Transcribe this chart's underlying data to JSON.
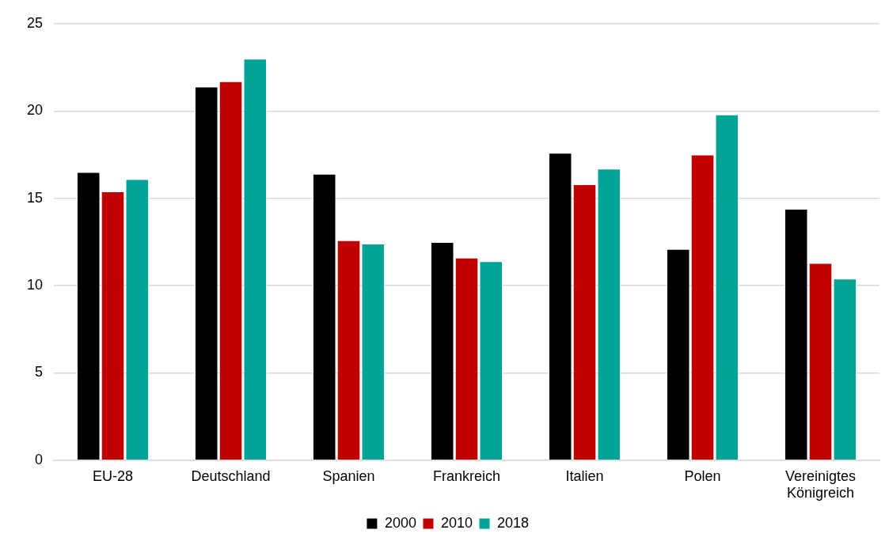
{
  "chart_data": {
    "type": "bar",
    "categories": [
      "EU-28",
      "Deutschland",
      "Spanien",
      "Frankreich",
      "Italien",
      "Polen",
      "Vereinigtes Königreich"
    ],
    "series": [
      {
        "name": "2000",
        "color": "#000000",
        "values": [
          16.5,
          21.4,
          16.4,
          12.5,
          17.6,
          12.1,
          14.4
        ]
      },
      {
        "name": "2010",
        "color": "#c00000",
        "values": [
          15.4,
          21.7,
          12.6,
          11.6,
          15.8,
          17.5,
          11.3
        ]
      },
      {
        "name": "2018",
        "color": "#00a497",
        "values": [
          16.1,
          23.0,
          12.4,
          11.4,
          16.7,
          19.8,
          10.4
        ]
      }
    ],
    "ylim": [
      0,
      25
    ],
    "yticks": [
      0,
      5,
      10,
      15,
      20,
      25
    ],
    "grid": "y",
    "legend": "bottom"
  }
}
